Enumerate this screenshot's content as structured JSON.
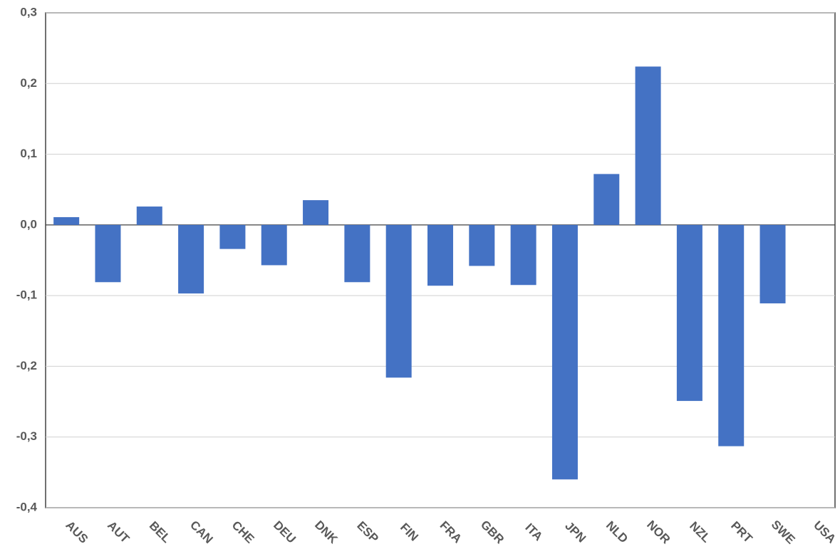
{
  "chart_data": {
    "type": "bar",
    "categories": [
      "AUS",
      "AUT",
      "BEL",
      "CAN",
      "CHE",
      "DEU",
      "DNK",
      "ESP",
      "FIN",
      "FRA",
      "GBR",
      "ITA",
      "JPN",
      "NLD",
      "NOR",
      "NZL",
      "PRT",
      "SWE",
      "USA"
    ],
    "values": [
      0.011,
      -0.081,
      0.026,
      -0.097,
      -0.034,
      -0.057,
      0.035,
      -0.081,
      -0.216,
      -0.086,
      -0.058,
      -0.085,
      -0.36,
      0.072,
      0.224,
      -0.249,
      -0.313,
      -0.111,
      null
    ],
    "color": "#4472c4",
    "ylim": [
      -0.4,
      0.3
    ],
    "yticks": [
      {
        "value": -0.4,
        "label": "-0,4"
      },
      {
        "value": -0.3,
        "label": "-0,3"
      },
      {
        "value": -0.2,
        "label": "-0,2"
      },
      {
        "value": -0.1,
        "label": "-0,1"
      },
      {
        "value": 0,
        "label": "0,0"
      },
      {
        "value": 0.1,
        "label": "0,1"
      },
      {
        "value": 0.2,
        "label": "0,2"
      },
      {
        "value": 0.3,
        "label": "0,3"
      }
    ],
    "grid": true
  }
}
